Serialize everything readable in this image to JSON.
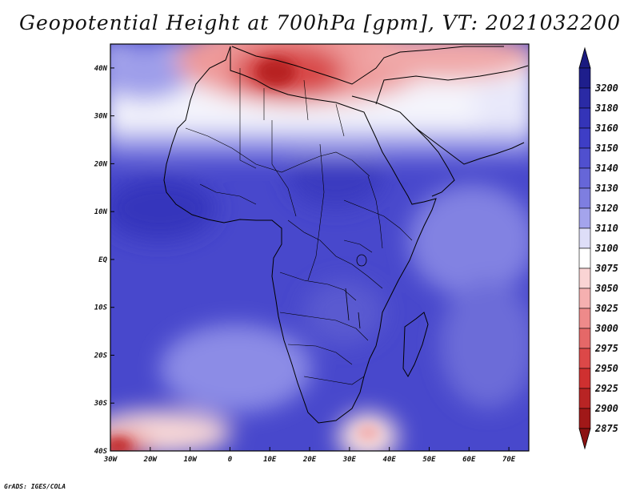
{
  "title": "Geopotential Height at 700hPa [gpm], VT: 2021032200",
  "footer": "GrADS: IGES/COLA",
  "map": {
    "lon_range": [
      -30,
      75
    ],
    "lat_range": [
      -40,
      45
    ],
    "lon_ticks": [
      {
        "lon": -30,
        "label": "30W"
      },
      {
        "lon": -20,
        "label": "20W"
      },
      {
        "lon": -10,
        "label": "10W"
      },
      {
        "lon": 0,
        "label": "0"
      },
      {
        "lon": 10,
        "label": "10E"
      },
      {
        "lon": 20,
        "label": "20E"
      },
      {
        "lon": 30,
        "label": "30E"
      },
      {
        "lon": 40,
        "label": "40E"
      },
      {
        "lon": 50,
        "label": "50E"
      },
      {
        "lon": 60,
        "label": "60E"
      },
      {
        "lon": 70,
        "label": "70E"
      }
    ],
    "lat_ticks": [
      {
        "lat": 40,
        "label": "40N"
      },
      {
        "lat": 30,
        "label": "30N"
      },
      {
        "lat": 20,
        "label": "20N"
      },
      {
        "lat": 10,
        "label": "10N"
      },
      {
        "lat": 0,
        "label": "EQ"
      },
      {
        "lat": -10,
        "label": "10S"
      },
      {
        "lat": -20,
        "label": "20S"
      },
      {
        "lat": -30,
        "label": "30S"
      },
      {
        "lat": -40,
        "label": "40S"
      }
    ]
  },
  "colorbar": {
    "levels": [
      {
        "value": "3200",
        "color": "#1e1e8c"
      },
      {
        "value": "3180",
        "color": "#2a2aa5"
      },
      {
        "value": "3160",
        "color": "#3434b8"
      },
      {
        "value": "3150",
        "color": "#3e3ec6"
      },
      {
        "value": "3140",
        "color": "#5050cf"
      },
      {
        "value": "3130",
        "color": "#6666d8"
      },
      {
        "value": "3120",
        "color": "#7e7ee0"
      },
      {
        "value": "3110",
        "color": "#a4a4ec"
      },
      {
        "value": "3100",
        "color": "#dedef8"
      },
      {
        "value": "3075",
        "color": "#ffffff"
      },
      {
        "value": "3050",
        "color": "#fad4d4"
      },
      {
        "value": "3025",
        "color": "#f5b0b0"
      },
      {
        "value": "3000",
        "color": "#ee8a8a"
      },
      {
        "value": "2975",
        "color": "#e56868"
      },
      {
        "value": "2950",
        "color": "#dc4848"
      },
      {
        "value": "2925",
        "color": "#cf3030"
      },
      {
        "value": "2900",
        "color": "#b82424"
      },
      {
        "value": "2875",
        "color": "#a01818"
      }
    ],
    "top_arrow_color": "#1a1a80",
    "bottom_arrow_color": "#8c1212"
  }
}
